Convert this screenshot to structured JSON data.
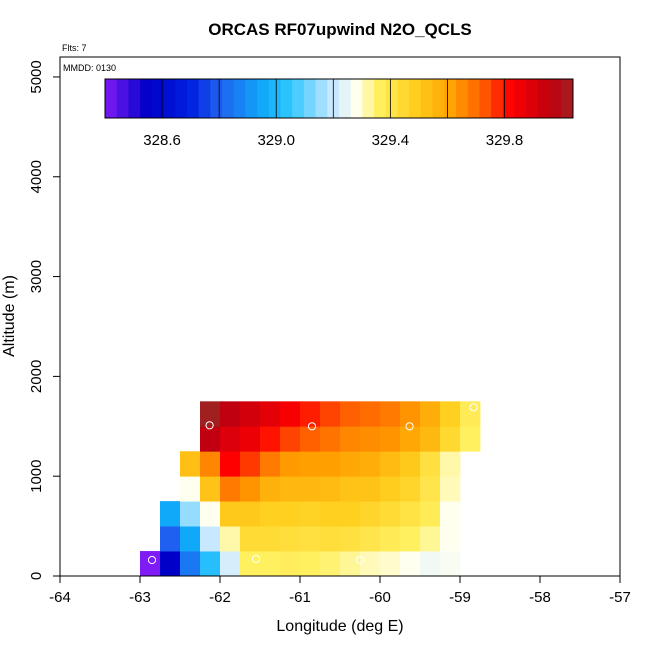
{
  "chart_data": {
    "type": "heatmap",
    "title": "ORCAS RF07upwind N2O_QCLS",
    "annotations": {
      "flts": "Flts: 7",
      "mmdd": "MMDD: 0130"
    },
    "xlabel": "Longitude (deg E)",
    "ylabel": "Altitude (m)",
    "xlim": [
      -64,
      -57
    ],
    "ylim": [
      0,
      5200
    ],
    "xticks": [
      -64,
      -63,
      -62,
      -61,
      -60,
      -59,
      -58,
      -57
    ],
    "yticks": [
      0,
      1000,
      2000,
      3000,
      4000,
      5000
    ],
    "grid": false,
    "cell_size": {
      "lon": 0.25,
      "alt": 250
    },
    "colorbar": {
      "min": 328.4,
      "max": 330.04,
      "ticks": [
        328.6,
        329.0,
        329.4,
        329.8
      ],
      "tick_labels": [
        "328.6",
        "329.0",
        "329.4",
        "329.8"
      ],
      "stops": [
        {
          "v": 328.4,
          "c": "#7f1cf5"
        },
        {
          "v": 328.55,
          "c": "#0000c8"
        },
        {
          "v": 328.7,
          "c": "#0020e0"
        },
        {
          "v": 328.8,
          "c": "#2060f0"
        },
        {
          "v": 328.95,
          "c": "#10a8f8"
        },
        {
          "v": 329.05,
          "c": "#30c8ff"
        },
        {
          "v": 329.2,
          "c": "#c8e8ff"
        },
        {
          "v": 329.28,
          "c": "#fffff0"
        },
        {
          "v": 329.36,
          "c": "#fff060"
        },
        {
          "v": 329.48,
          "c": "#ffd020"
        },
        {
          "v": 329.62,
          "c": "#ffa000"
        },
        {
          "v": 329.72,
          "c": "#ff6000"
        },
        {
          "v": 329.82,
          "c": "#ff0000"
        },
        {
          "v": 329.96,
          "c": "#c00010"
        },
        {
          "v": 330.04,
          "c": "#a02020"
        }
      ]
    },
    "rows": [
      {
        "alt": 125,
        "lon_start": -63.0,
        "values": [
          328.4,
          328.55,
          328.85,
          329.02,
          329.22,
          329.36,
          329.36,
          329.37,
          329.36,
          329.35,
          329.33,
          329.31,
          329.3,
          329.28,
          329.26,
          329.27
        ]
      },
      {
        "alt": 375,
        "lon_start": -62.75,
        "values": [
          328.8,
          328.95,
          329.2,
          329.32,
          329.44,
          329.44,
          329.43,
          329.42,
          329.43,
          329.42,
          329.4,
          329.38,
          329.36,
          329.33,
          329.28
        ]
      },
      {
        "alt": 625,
        "lon_start": -62.75,
        "values": [
          328.95,
          329.15,
          329.28,
          329.5,
          329.5,
          329.48,
          329.48,
          329.47,
          329.48,
          329.48,
          329.46,
          329.44,
          329.41,
          329.38,
          329.28
        ]
      },
      {
        "alt": 875,
        "lon_start": -62.5,
        "values": [
          329.28,
          329.52,
          329.68,
          329.64,
          329.57,
          329.55,
          329.55,
          329.54,
          329.52,
          329.52,
          329.49,
          329.46,
          329.4,
          329.31
        ]
      },
      {
        "alt": 1125,
        "lon_start": -62.5,
        "values": [
          329.53,
          329.66,
          329.82,
          329.76,
          329.68,
          329.63,
          329.62,
          329.62,
          329.6,
          329.58,
          329.54,
          329.5,
          329.42,
          329.32
        ]
      },
      {
        "alt": 1375,
        "lon_start": -62.25,
        "values": [
          329.96,
          329.9,
          329.86,
          329.8,
          329.75,
          329.72,
          329.69,
          329.66,
          329.65,
          329.64,
          329.6,
          329.55,
          329.45,
          329.36
        ]
      },
      {
        "alt": 1625,
        "lon_start": -62.25,
        "values": [
          330.04,
          329.96,
          329.92,
          329.88,
          329.84,
          329.79,
          329.75,
          329.72,
          329.7,
          329.68,
          329.64,
          329.58,
          329.48,
          329.38
        ]
      }
    ],
    "sample_points": [
      {
        "lon": -62.85,
        "alt": 160
      },
      {
        "lon": -61.55,
        "alt": 170
      },
      {
        "lon": -60.25,
        "alt": 160
      },
      {
        "lon": -58.88,
        "alt": 160
      },
      {
        "lon": -62.13,
        "alt": 1510
      },
      {
        "lon": -60.85,
        "alt": 1500
      },
      {
        "lon": -59.63,
        "alt": 1500
      },
      {
        "lon": -58.83,
        "alt": 1690
      }
    ]
  }
}
